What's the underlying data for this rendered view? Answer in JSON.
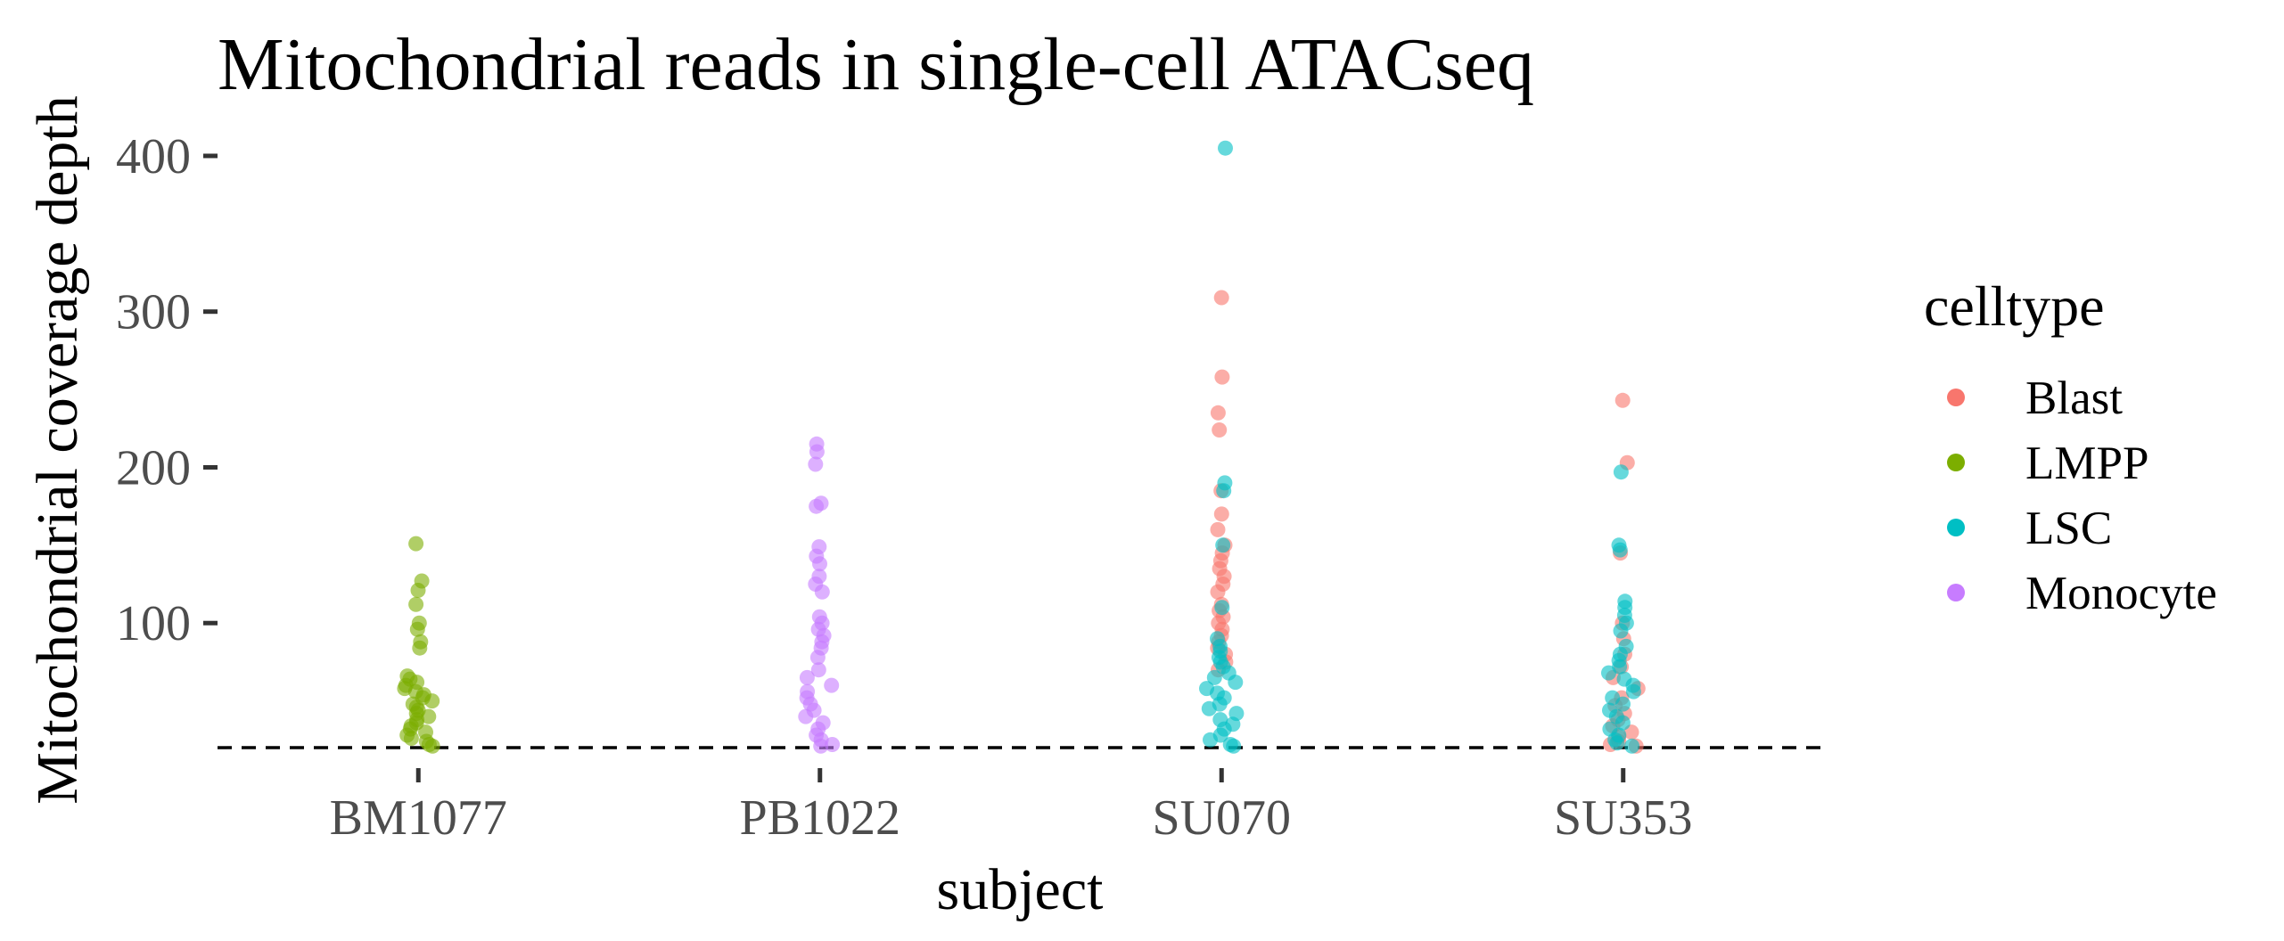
{
  "chart_data": {
    "type": "scatter",
    "title": "Mitochondrial reads in single-cell ATACseq",
    "xlabel": "subject",
    "ylabel": "Mitochondrial coverage depth",
    "categories": [
      "BM1077",
      "PB1022",
      "SU070",
      "SU353"
    ],
    "ylim": [
      8,
      420
    ],
    "yticks": [
      100,
      200,
      300,
      400
    ],
    "reference_line": {
      "y": 20,
      "style": "dashed"
    },
    "grid": false,
    "legend": {
      "title": "celltype",
      "position": "right",
      "items": [
        {
          "name": "Blast",
          "color": "#F8766D"
        },
        {
          "name": "LMPP",
          "color": "#7CAE00"
        },
        {
          "name": "LSC",
          "color": "#00BFC4"
        },
        {
          "name": "Monocyte",
          "color": "#C77CFF"
        }
      ]
    },
    "series": [
      {
        "name": "Blast",
        "points": [
          {
            "x": "SU070",
            "y": [
              309,
              258,
              235,
              224,
              185,
              170,
              160,
              150,
              145,
              140,
              135,
              130,
              125,
              120,
              112,
              108,
              104,
              100,
              96,
              92,
              88,
              84,
              80,
              75,
              70
            ]
          },
          {
            "x": "SU353",
            "y": [
              243,
              203,
              145,
              100,
              90,
              80,
              72,
              65,
              58,
              52,
              47,
              42,
              38,
              34,
              30,
              27,
              24,
              22,
              21
            ]
          }
        ]
      },
      {
        "name": "LMPP",
        "points": [
          {
            "x": "BM1077",
            "y": [
              151,
              127,
              121,
              112,
              100,
              96,
              88,
              84,
              66,
              64,
              62,
              60,
              58,
              56,
              54,
              52,
              50,
              48,
              46,
              44,
              42,
              40,
              38,
              36,
              34,
              32,
              30,
              28,
              26,
              24,
              22,
              21
            ]
          }
        ]
      },
      {
        "name": "LSC",
        "points": [
          {
            "x": "SU070",
            "y": [
              405,
              190,
              185,
              150,
              110,
              90,
              85,
              82,
              78,
              75,
              72,
              68,
              65,
              62,
              58,
              55,
              52,
              48,
              45,
              42,
              38,
              35,
              32,
              28,
              25,
              22,
              21
            ]
          },
          {
            "x": "SU353",
            "y": [
              197,
              150,
              147,
              114,
              110,
              105,
              100,
              95,
              85,
              80,
              76,
              72,
              68,
              64,
              60,
              56,
              52,
              48,
              44,
              40,
              36,
              32,
              28,
              25,
              23,
              21
            ]
          }
        ]
      },
      {
        "name": "Monocyte",
        "points": [
          {
            "x": "PB1022",
            "y": [
              215,
              210,
              202,
              177,
              175,
              149,
              143,
              138,
              130,
              125,
              120,
              104,
              100,
              96,
              92,
              88,
              84,
              78,
              70,
              65,
              60,
              56,
              52,
              48,
              44,
              40,
              36,
              32,
              28,
              25,
              22,
              21
            ]
          }
        ]
      }
    ]
  }
}
